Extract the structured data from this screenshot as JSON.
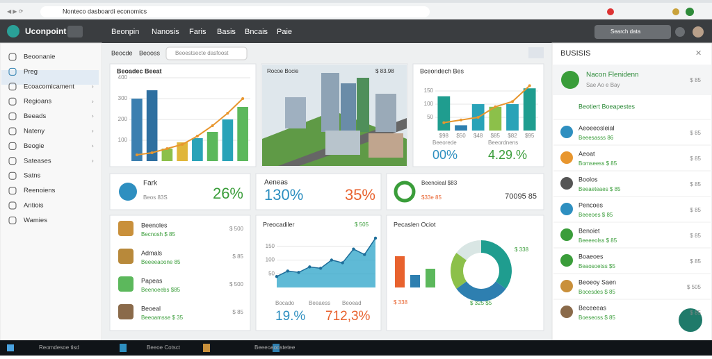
{
  "browser": {
    "url": "Nonteco dasboardi economics"
  },
  "header": {
    "brand": "Uconpoint",
    "nav": [
      "Beonpin",
      "Nanosis",
      "Faris",
      "Basis",
      "Bncais",
      "Paie"
    ],
    "search": "Search data"
  },
  "sidebar": {
    "items": [
      "Beoonanie",
      "Preg",
      "Ecoacomicament",
      "Regioans",
      "Beeads",
      "Nateny",
      "Beogie",
      "Sateases",
      "Satns",
      "Reenoiens",
      "Antiois",
      "Wamies"
    ]
  },
  "toolbar": {
    "tabs": [
      "Beocde",
      "Beooss"
    ],
    "filter": "Beoestsecte dasfoost"
  },
  "overview_chart": {
    "title": "Beoadec Beeat",
    "ylim": [
      0,
      400
    ],
    "yticks": [
      100,
      200,
      300,
      400
    ],
    "values": [
      300,
      340,
      60,
      90,
      110,
      140,
      200,
      260
    ],
    "colors": [
      "#3b7fb0",
      "#2e6fa0",
      "#8cc04a",
      "#e0b63a",
      "#29a3b8",
      "#5cb85c",
      "#29a3b8",
      "#5cb85c"
    ],
    "line": [
      30,
      40,
      60,
      80,
      120,
      170,
      230,
      300
    ],
    "line_color": "#e8962e"
  },
  "city_card": {
    "title": "Rocoe Bocie",
    "badge": "$ 83.98"
  },
  "side_chart": {
    "title": "Bceondech Bes",
    "ylim": [
      0,
      200
    ],
    "yticks": [
      50,
      100,
      150
    ],
    "values": [
      130,
      20,
      100,
      90,
      100,
      160
    ],
    "colors": [
      "#1f9d8f",
      "#2e7fb0",
      "#29a3b8",
      "#8cc04a",
      "#29a3b8",
      "#1f9d8f"
    ],
    "line": [
      30,
      40,
      50,
      90,
      110,
      170
    ],
    "line_color": "#e8962e",
    "categories": [
      "$98",
      "$50",
      "$48",
      "$85",
      "$82",
      "$95"
    ],
    "kpi_labels": [
      "Beeorede",
      "Beeordnens"
    ],
    "kpis": [
      "00%",
      "4.29.%"
    ]
  },
  "kpis": [
    {
      "label": "Fark",
      "sub": "Beos 83S",
      "value": "26%"
    },
    {
      "label": "Aeneas",
      "value": "130%",
      "value2": "35%"
    },
    {
      "label": "Beenoieal $83",
      "sub": "$33e 85",
      "value": "70095 85"
    }
  ],
  "list_card": {
    "items": [
      {
        "name": "Beenoles",
        "sub": "Becnosh $ 85",
        "value": "$ 500"
      },
      {
        "name": "Admals",
        "sub": "Beeeeaoone 85",
        "value": "$ 85"
      },
      {
        "name": "Papeas",
        "sub": "Beenoeebs $85",
        "value": "$ 500"
      },
      {
        "name": "Beoeal",
        "sub": "Beeoamsse $ 35",
        "value": "$ 85"
      }
    ]
  },
  "line_chart": {
    "title": "Preocadiler",
    "badge": "$ 505",
    "ylim": [
      0,
      200
    ],
    "yticks": [
      50,
      100,
      150
    ],
    "values": [
      40,
      60,
      55,
      75,
      70,
      100,
      90,
      140,
      120,
      180
    ],
    "color": "#29a3c8",
    "xlabels": [
      "Bocado",
      "Beeaess",
      "Beoead"
    ],
    "kpis": [
      "19.%",
      "712,3%"
    ]
  },
  "donut_card": {
    "title": "Pecaslen Ociot",
    "badge": "$ 338",
    "badge2": "$ 325 $5",
    "values": [
      35,
      30,
      20,
      15
    ],
    "colors": [
      "#1f9d8f",
      "#2e7fb0",
      "#8cc04a",
      "#d9e6e4"
    ],
    "bars": [
      100,
      40,
      60
    ],
    "bar_colors": [
      "#e8622e",
      "#2e7fb0",
      "#5cb85c"
    ],
    "bar_ylim": [
      0,
      120
    ],
    "bar_label": "$ 338"
  },
  "right_panel": {
    "title": "BUSISIS",
    "profile": {
      "name": "Nacon Flenidenn",
      "sub": "Sae Ao e Bay",
      "value": "$ 85"
    },
    "section": "Beotiert Boeapestes",
    "items": [
      {
        "name": "Aeoeeosleial",
        "sub": "Beeesasss 86",
        "value": "$ 85"
      },
      {
        "name": "Aeoat",
        "sub": "Bomseess $ 85",
        "value": "$ 85"
      },
      {
        "name": "Boolos",
        "sub": "Beeaeteaes $ 85",
        "value": "$ 85"
      },
      {
        "name": "Pencoes",
        "sub": "Beeeoes $ 85",
        "value": "$ 85"
      },
      {
        "name": "Benoiet",
        "sub": "Beeeeolss $ 85",
        "value": "$ 85"
      },
      {
        "name": "Boaeoes",
        "sub": "Beaosoetss $5",
        "value": "$ 85"
      },
      {
        "name": "Beoeoy Saen",
        "sub": "Bocesdes $ 85",
        "value": "$ 505"
      },
      {
        "name": "Beceeeas",
        "sub": "Boeseoss $ 85",
        "value": "$ 85"
      }
    ]
  },
  "taskbar": {
    "items": [
      "Reomdesoe tisd",
      "Beeoe Cotsct",
      "Beeeoaoostetee"
    ]
  }
}
